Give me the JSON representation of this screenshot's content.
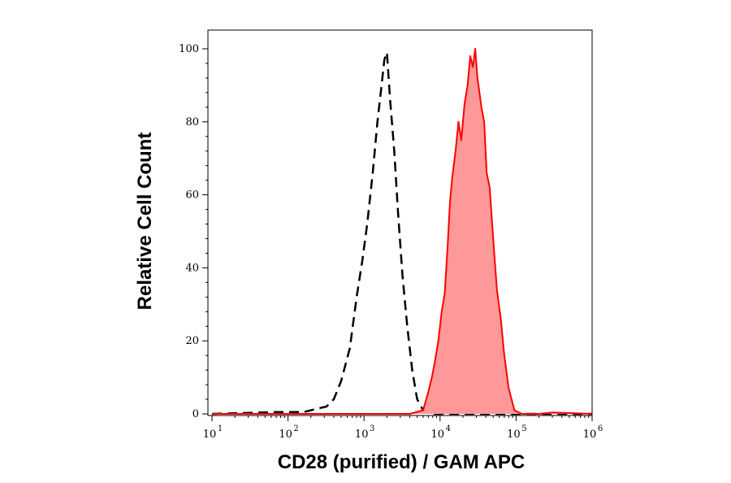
{
  "chart_data": {
    "type": "area",
    "title": "",
    "xlabel": "CD28 (purified) / GAM APC",
    "ylabel": "Relative Cell Count",
    "x_scale": "log",
    "xlim": [
      10,
      1000000
    ],
    "ylim": [
      0,
      100
    ],
    "grid": false,
    "x_ticks": [
      {
        "base": "10",
        "exp": "1"
      },
      {
        "base": "10",
        "exp": "2"
      },
      {
        "base": "10",
        "exp": "3"
      },
      {
        "base": "10",
        "exp": "4"
      },
      {
        "base": "10",
        "exp": "5"
      },
      {
        "base": "10",
        "exp": "6"
      }
    ],
    "x_tick_values": [
      10,
      100,
      1000,
      10000,
      100000,
      1000000
    ],
    "y_ticks": [
      "0",
      "20",
      "40",
      "60",
      "80",
      "100"
    ],
    "y_tick_values": [
      0,
      20,
      40,
      60,
      80,
      100
    ],
    "series": [
      {
        "style": "dashed-outline",
        "color": "#000000",
        "x": [
          10,
          70,
          160,
          250,
          320,
          400,
          500,
          650,
          800,
          950,
          1100,
          1300,
          1500,
          1700,
          1850,
          2000,
          2200,
          2500,
          2800,
          3200,
          3700,
          4300,
          5000,
          6000,
          8000,
          1000000
        ],
        "y": [
          0,
          0.5,
          0.5,
          1.5,
          2,
          4,
          9,
          18,
          32,
          42,
          52,
          66,
          80,
          90,
          97,
          99,
          86,
          72,
          55,
          38,
          24,
          12,
          4,
          1,
          0,
          0
        ]
      },
      {
        "style": "filled",
        "color": "#ff0000",
        "fill": "#ff9999",
        "x": [
          10,
          4000,
          6000,
          7000,
          7800,
          8500,
          9500,
          10500,
          11500,
          12500,
          13500,
          14500,
          16000,
          17500,
          19000,
          21000,
          23000,
          25000,
          27000,
          29000,
          31000,
          33000,
          35000,
          38000,
          41000,
          45000,
          50000,
          56000,
          63000,
          70000,
          80000,
          95000,
          120000,
          200000,
          300000,
          1000000
        ],
        "y": [
          0,
          0,
          1,
          6,
          10,
          14,
          20,
          28,
          33,
          45,
          58,
          65,
          72,
          80,
          75,
          85,
          90,
          98,
          95,
          100,
          92,
          88,
          84,
          80,
          66,
          62,
          48,
          34,
          26,
          16,
          7,
          1,
          0,
          0,
          0.4,
          0
        ]
      }
    ]
  }
}
